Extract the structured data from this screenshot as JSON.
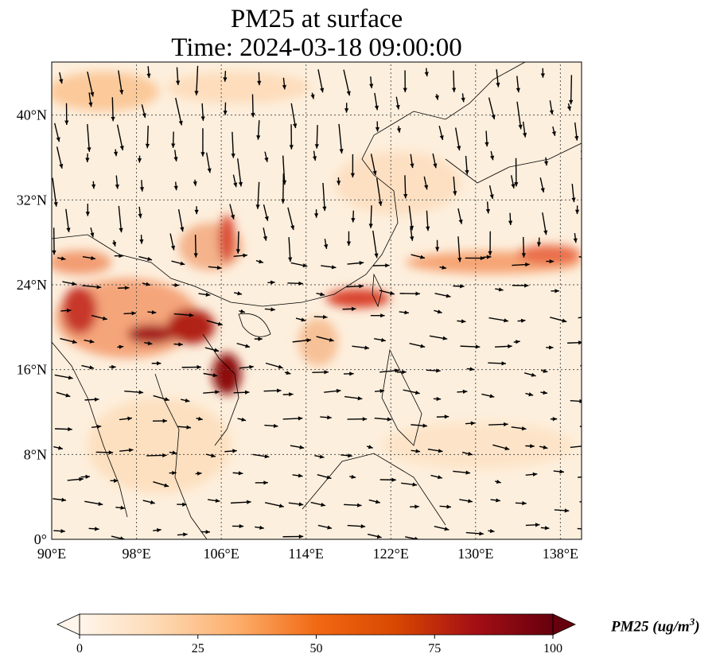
{
  "title": {
    "line1": "PM25 at surface",
    "line2": "Time: 2024-03-18 09:00:00"
  },
  "axes": {
    "lat_ticks": [
      "0°",
      "8°N",
      "16°N",
      "24°N",
      "32°N",
      "40°N"
    ],
    "lon_ticks": [
      "90°E",
      "98°E",
      "106°E",
      "114°E",
      "122°E",
      "130°E",
      "138°E"
    ],
    "lat_range": [
      0,
      45
    ],
    "lon_range": [
      90,
      140
    ]
  },
  "colorbar": {
    "label": "PM25 (ug/m",
    "label_sup": "3",
    "label_close": ")",
    "ticks": [
      "0",
      "25",
      "50",
      "75",
      "100"
    ],
    "range": [
      0,
      100
    ],
    "colors": [
      "#fff5eb",
      "#fdd9b3",
      "#fdae6b",
      "#f16913",
      "#d94801",
      "#a50f15",
      "#67000d"
    ]
  }
}
